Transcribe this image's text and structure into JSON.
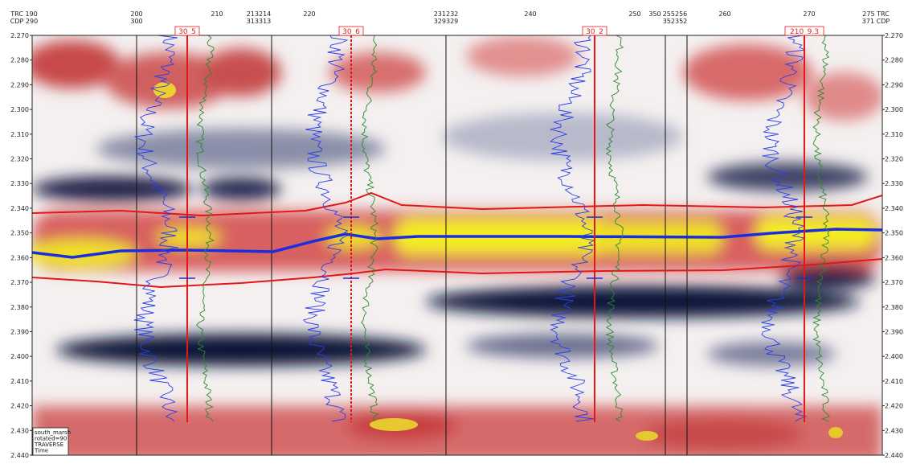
{
  "trace_labels": [
    [
      "TRC 190",
      "CDP 290"
    ],
    [
      "200",
      "300"
    ],
    [
      "210"
    ],
    [
      "213214",
      "313313"
    ],
    [
      "220"
    ],
    [
      "231232",
      "329329"
    ],
    [
      "240"
    ],
    [
      "250"
    ],
    [
      "350"
    ],
    [
      "255256",
      "352352"
    ],
    [
      "260"
    ],
    [
      "270"
    ],
    [
      "275 TRC",
      "371 CDP"
    ]
  ],
  "time_ticks": [
    "2.270",
    "2.280",
    "2.290",
    "2.300",
    "2.310",
    "2.320",
    "2.330",
    "2.340",
    "2.350",
    "2.360",
    "2.370",
    "2.380",
    "2.390",
    "2.400",
    "2.410",
    "2.420",
    "2.430",
    "2.440"
  ],
  "wells": [
    {
      "label": "30_5"
    },
    {
      "label": "30_6"
    },
    {
      "label": "30_2"
    },
    {
      "label": "210_9.3"
    }
  ],
  "legend": {
    "lines": [
      "south_marsh",
      "rotated=90",
      "TRAVERSE",
      "Time"
    ]
  }
}
